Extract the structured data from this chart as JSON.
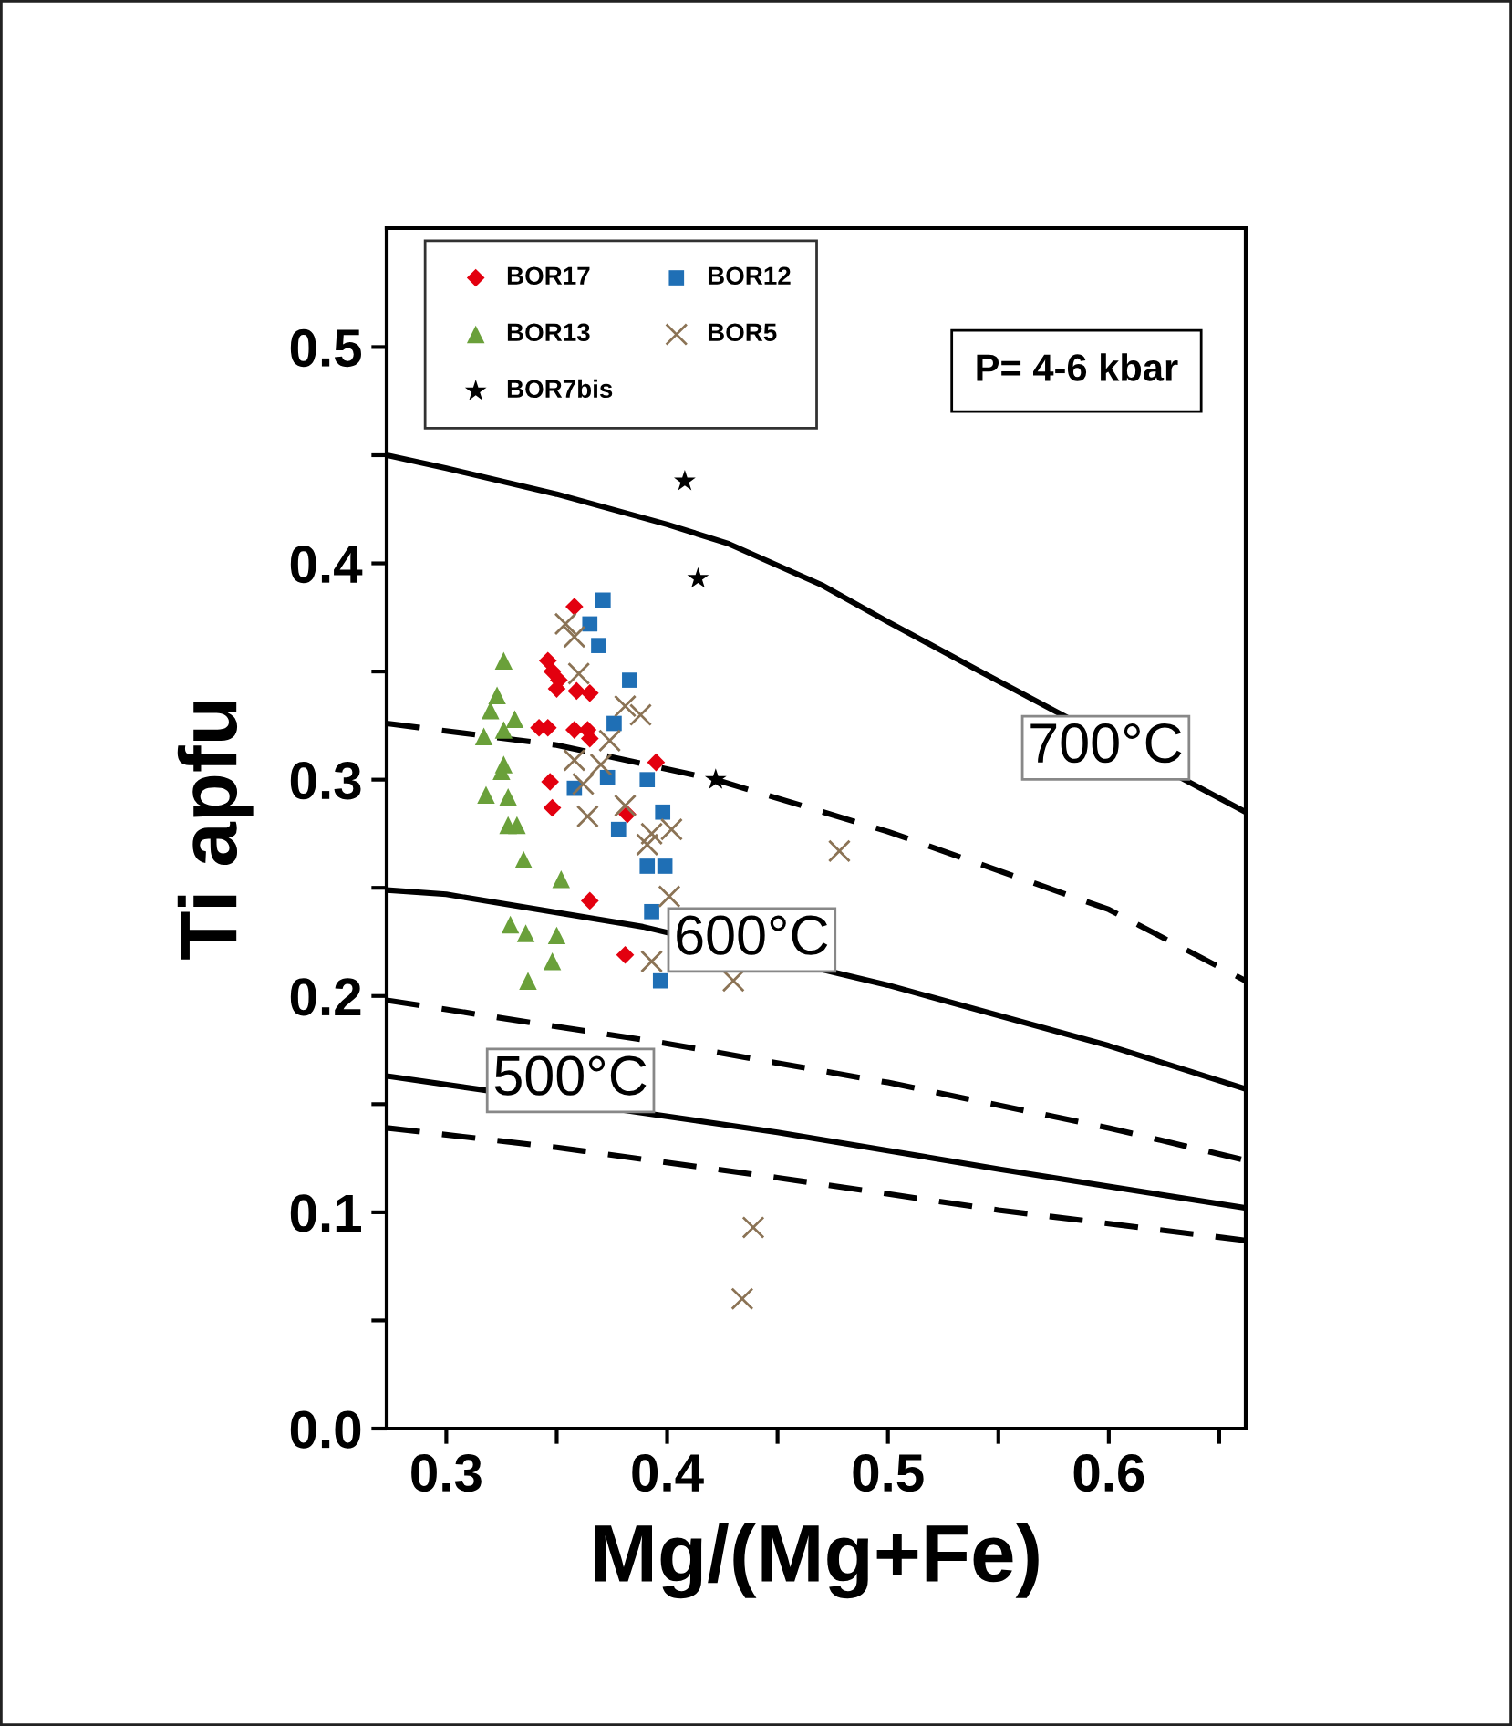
{
  "chart_data": {
    "type": "scatter",
    "xlabel": "Mg/(Mg+Fe)",
    "ylabel": "Ti apfu",
    "xlim": [
      0.273,
      0.662
    ],
    "ylim": [
      0,
      0.555
    ],
    "xticks": [
      0.3,
      {
        "value": 0.35,
        "label": null
      },
      0.4,
      {
        "value": 0.45,
        "label": null
      },
      0.5,
      {
        "value": 0.55,
        "label": null
      },
      0.6,
      {
        "value": 0.65,
        "label": null
      }
    ],
    "yticks": [
      {
        "value": 0,
        "label": "0.0"
      },
      {
        "value": 0.05,
        "label": null
      },
      0.1,
      {
        "value": 0.15,
        "label": null
      },
      0.2,
      {
        "value": 0.25,
        "label": null
      },
      0.3,
      {
        "value": 0.35,
        "label": null
      },
      0.4,
      {
        "value": 0.45,
        "label": null
      },
      0.5
    ],
    "grid": false,
    "legend": "top left",
    "series": [
      {
        "name": "BOR17",
        "marker": "diamond",
        "color": "#e3000f",
        "x": [
          0.358,
          0.346,
          0.348,
          0.351,
          0.35,
          0.359,
          0.365,
          0.342,
          0.346,
          0.358,
          0.364,
          0.365,
          0.395,
          0.347,
          0.348,
          0.382,
          0.365,
          0.381
        ],
        "values": [
          0.38,
          0.355,
          0.35,
          0.346,
          0.342,
          0.341,
          0.34,
          0.324,
          0.324,
          0.323,
          0.323,
          0.319,
          0.308,
          0.299,
          0.287,
          0.284,
          0.244,
          0.219
        ]
      },
      {
        "name": "BOR12",
        "marker": "square",
        "color": "#1f6fb5",
        "x": [
          0.371,
          0.365,
          0.369,
          0.383,
          0.376,
          0.373,
          0.358,
          0.391,
          0.398,
          0.378,
          0.391,
          0.399,
          0.393,
          0.397
        ],
        "values": [
          0.383,
          0.372,
          0.362,
          0.346,
          0.326,
          0.301,
          0.296,
          0.3,
          0.285,
          0.277,
          0.26,
          0.26,
          0.239,
          0.207
        ]
      },
      {
        "name": "BOR13",
        "marker": "triangle",
        "color": "#6aa03a",
        "x": [
          0.326,
          0.323,
          0.32,
          0.331,
          0.317,
          0.326,
          0.326,
          0.325,
          0.318,
          0.328,
          0.328,
          0.332,
          0.335,
          0.352,
          0.329,
          0.336,
          0.35,
          0.348,
          0.337
        ],
        "values": [
          0.355,
          0.339,
          0.332,
          0.328,
          0.32,
          0.323,
          0.307,
          0.304,
          0.293,
          0.292,
          0.279,
          0.279,
          0.263,
          0.254,
          0.233,
          0.229,
          0.228,
          0.216,
          0.207
        ]
      },
      {
        "name": "BOR5",
        "marker": "cross",
        "color": "#8b7355",
        "x": [
          0.354,
          0.358,
          0.36,
          0.381,
          0.388,
          0.374,
          0.358,
          0.37,
          0.362,
          0.381,
          0.364,
          0.393,
          0.402,
          0.391,
          0.401,
          0.393,
          0.478,
          0.43,
          0.439,
          0.434
        ],
        "values": [
          0.372,
          0.366,
          0.349,
          0.334,
          0.33,
          0.318,
          0.309,
          0.307,
          0.298,
          0.288,
          0.283,
          0.275,
          0.277,
          0.27,
          0.246,
          0.216,
          0.267,
          0.207,
          0.093,
          0.06
        ]
      },
      {
        "name": "BOR7bis",
        "marker": "star",
        "color": "#000000",
        "x": [
          0.408,
          0.414,
          0.422
        ],
        "values": [
          0.438,
          0.393,
          0.3
        ]
      },
      {
        "type": "line",
        "line_style": "solid",
        "color": "#000000",
        "x": [
          0.273,
          0.3,
          0.35,
          0.4,
          0.428,
          0.47,
          0.5,
          0.54,
          0.662
        ],
        "values": [
          0.45,
          0.444,
          0.432,
          0.418,
          0.409,
          0.39,
          0.373,
          0.351,
          0.285
        ]
      },
      {
        "type": "line",
        "line_style": "dashed",
        "color": "#000000",
        "x": [
          0.273,
          0.35,
          0.422,
          0.5,
          0.6,
          0.662
        ],
        "values": [
          0.326,
          0.316,
          0.3,
          0.276,
          0.24,
          0.207
        ]
      },
      {
        "type": "line",
        "line_style": "solid",
        "color": "#000000",
        "x": [
          0.273,
          0.3,
          0.389,
          0.5,
          0.6,
          0.662
        ],
        "values": [
          0.249,
          0.247,
          0.232,
          0.205,
          0.177,
          0.157
        ]
      },
      {
        "type": "line",
        "line_style": "dashed",
        "color": "#000000",
        "x": [
          0.273,
          0.4,
          0.5,
          0.6,
          0.662
        ],
        "values": [
          0.198,
          0.178,
          0.16,
          0.139,
          0.124
        ]
      },
      {
        "type": "line",
        "line_style": "solid",
        "color": "#000000",
        "x": [
          0.273,
          0.45,
          0.55,
          0.662
        ],
        "values": [
          0.163,
          0.137,
          0.12,
          0.102
        ]
      },
      {
        "type": "line",
        "line_style": "dashed",
        "color": "#000000",
        "x": [
          0.273,
          0.35,
          0.45,
          0.55,
          0.662
        ],
        "values": [
          0.139,
          0.13,
          0.116,
          0.101,
          0.087
        ]
      }
    ],
    "annotations": [
      "700°C",
      "600°C",
      "500°C",
      "P= 4-6 kbar"
    ]
  }
}
